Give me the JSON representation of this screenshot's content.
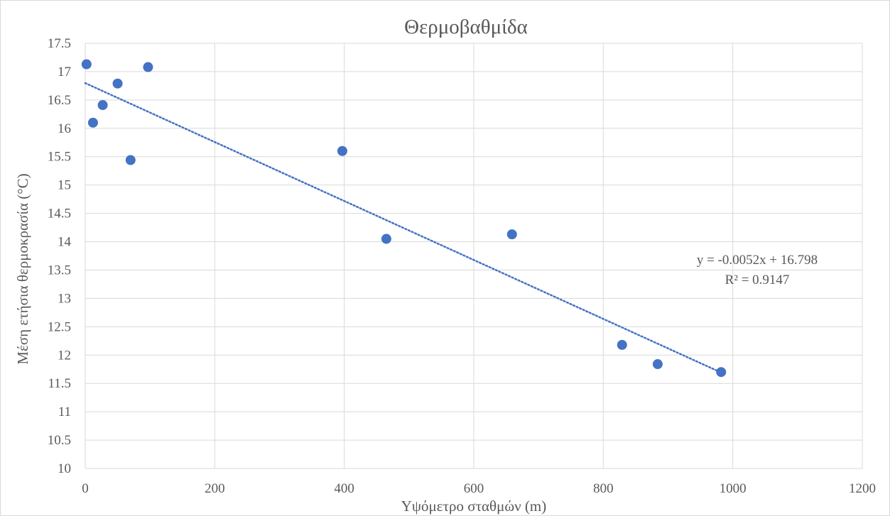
{
  "chart_data": {
    "type": "scatter",
    "title": "Θερμοβαθμίδα",
    "xlabel": "Υψόμετρο σταθμών (m)",
    "ylabel": "Μέση ετήσια θερμοκρασία (°C)",
    "xlim": [
      0,
      1200
    ],
    "ylim": [
      10,
      17.5
    ],
    "x_ticks": [
      0,
      200,
      400,
      600,
      800,
      1000,
      1200
    ],
    "y_ticks": [
      10,
      10.5,
      11,
      11.5,
      12,
      12.5,
      13,
      13.5,
      14,
      14.5,
      15,
      15.5,
      16,
      16.5,
      17,
      17.5
    ],
    "grid": true,
    "legend": "none",
    "marker_color": "#4472c4",
    "series": [
      {
        "x": [
          2,
          12,
          27,
          50,
          70,
          97,
          397,
          465,
          659,
          829,
          884,
          982
        ],
        "y": [
          17.13,
          16.1,
          16.41,
          16.79,
          15.44,
          17.08,
          15.6,
          14.05,
          14.13,
          12.18,
          11.84,
          11.7
        ]
      }
    ],
    "trendline": {
      "type": "linear",
      "slope": -0.0052,
      "intercept": 16.798,
      "x_range": [
        0,
        982
      ],
      "style": "dotted",
      "color": "#4472c4",
      "equation_label": "y = -0.0052x + 16.798",
      "r2_label": "R² = 0.9147"
    }
  }
}
